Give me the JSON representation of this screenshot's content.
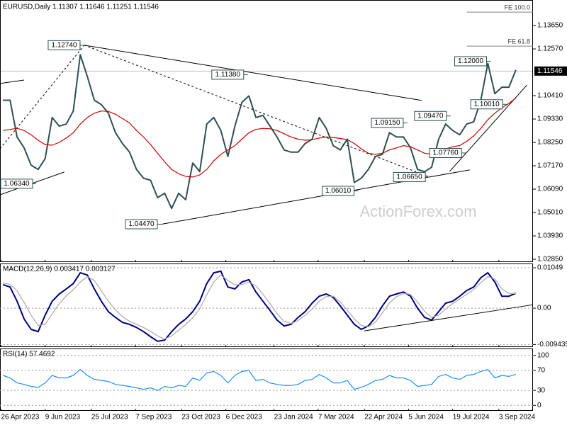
{
  "chart_data": {
    "type": "line",
    "title": "EURUSD,Daily 1.11307 1.11646 1.11251 1.11546",
    "watermark": "ActionForex.com",
    "x": [
      "2023-04-28",
      "2023-05-05",
      "2023-05-12",
      "2023-05-19",
      "2023-05-26",
      "2023-06-02",
      "2023-06-09",
      "2023-06-16",
      "2023-06-23",
      "2023-06-30",
      "2023-07-07",
      "2023-07-14",
      "2023-07-21",
      "2023-07-28",
      "2023-08-04",
      "2023-08-11",
      "2023-08-18",
      "2023-08-25",
      "2023-09-01",
      "2023-09-08",
      "2023-09-15",
      "2023-09-22",
      "2023-09-29",
      "2023-10-06",
      "2023-10-13",
      "2023-10-20",
      "2023-10-27",
      "2023-11-03",
      "2023-11-10",
      "2023-11-17",
      "2023-11-24",
      "2023-12-01",
      "2023-12-08",
      "2023-12-15",
      "2023-12-22",
      "2023-12-29",
      "2024-01-05",
      "2024-01-12",
      "2024-01-19",
      "2024-01-26",
      "2024-02-02",
      "2024-02-09",
      "2024-02-16",
      "2024-02-23",
      "2024-03-01",
      "2024-03-08",
      "2024-03-15",
      "2024-03-22",
      "2024-03-29",
      "2024-04-05",
      "2024-04-12",
      "2024-04-19",
      "2024-04-26",
      "2024-05-03",
      "2024-05-10",
      "2024-05-17",
      "2024-05-24",
      "2024-05-31",
      "2024-06-07",
      "2024-06-14",
      "2024-06-21",
      "2024-06-28",
      "2024-07-05",
      "2024-07-12",
      "2024-07-19",
      "2024-07-26",
      "2024-08-02",
      "2024-08-09",
      "2024-08-16",
      "2024-08-23",
      "2024-08-30",
      "2024-09-06",
      "2024-09-13",
      "2024-09-20"
    ],
    "xlim": [
      "2023-04-25",
      "2024-10-07"
    ],
    "xticks": [
      {
        "value": "2023-04-26",
        "label": "26 Apr 2023"
      },
      {
        "value": "2023-06-09",
        "label": "9 Jun 2023"
      },
      {
        "value": "2023-07-25",
        "label": "25 Jul 2023"
      },
      {
        "value": "2023-09-07",
        "label": "7 Sep 2023"
      },
      {
        "value": "2023-10-23",
        "label": "23 Oct 2023"
      },
      {
        "value": "2023-12-06",
        "label": "6 Dec 2023"
      },
      {
        "value": "2024-01-23",
        "label": "23 Jan 2024"
      },
      {
        "value": "2024-03-07",
        "label": "7 Mar 2024"
      },
      {
        "value": "2024-04-22",
        "label": "22 Apr 2024"
      },
      {
        "value": "2024-06-05",
        "label": "5 Jun 2024"
      },
      {
        "value": "2024-07-19",
        "label": "19 Jul 2024"
      },
      {
        "value": "2024-09-03",
        "label": "3 Sep 2024"
      }
    ],
    "ylim": [
      1.0272,
      1.1483
    ],
    "yticks": [
      {
        "value": 1.1365,
        "label": "1.13650"
      },
      {
        "value": 1.1257,
        "label": "1.12570"
      },
      {
        "value": 1.1041,
        "label": "1.10410"
      },
      {
        "value": 1.0933,
        "label": "1.09330"
      },
      {
        "value": 1.0825,
        "label": "1.08250"
      },
      {
        "value": 1.0717,
        "label": "1.07170"
      },
      {
        "value": 1.0609,
        "label": "1.06090"
      },
      {
        "value": 1.0501,
        "label": "1.05010"
      },
      {
        "value": 1.0393,
        "label": "1.03930"
      },
      {
        "value": 1.0285,
        "label": "1.02850"
      }
    ],
    "current_price": 1.11546,
    "series": [
      {
        "color": "#2f4f4f",
        "values": [
          1.102,
          1.102,
          1.085,
          1.08,
          1.072,
          1.07,
          1.075,
          1.094,
          1.09,
          1.091,
          1.097,
          1.123,
          1.113,
          1.102,
          1.1,
          1.096,
          1.087,
          1.082,
          1.078,
          1.07,
          1.066,
          1.065,
          1.057,
          1.059,
          1.052,
          1.059,
          1.056,
          1.073,
          1.069,
          1.091,
          1.094,
          1.088,
          1.076,
          1.09,
          1.101,
          1.104,
          1.094,
          1.095,
          1.09,
          1.085,
          1.079,
          1.078,
          1.078,
          1.082,
          1.084,
          1.094,
          1.089,
          1.081,
          1.079,
          1.084,
          1.064,
          1.066,
          1.07,
          1.076,
          1.077,
          1.087,
          1.085,
          1.085,
          1.08,
          1.07,
          1.069,
          1.071,
          1.084,
          1.091,
          1.088,
          1.086,
          1.091,
          1.092,
          1.102,
          1.119,
          1.105,
          1.108,
          1.108,
          1.116
        ]
      },
      {
        "color": "#cc0000",
        "values": [
          1.088,
          1.0885,
          1.089,
          1.088,
          1.086,
          1.0835,
          1.0815,
          1.0812,
          1.0825,
          1.0845,
          1.087,
          1.091,
          1.094,
          1.096,
          1.097,
          1.0968,
          1.0955,
          1.0935,
          1.0915,
          1.088,
          1.085,
          1.0815,
          1.0775,
          1.0735,
          1.07,
          1.068,
          1.0668,
          1.0665,
          1.0675,
          1.07,
          1.074,
          1.077,
          1.079,
          1.081,
          1.084,
          1.087,
          1.0885,
          1.089,
          1.0888,
          1.088,
          1.0865,
          1.085,
          1.084,
          1.0835,
          1.0838,
          1.0845,
          1.085,
          1.0848,
          1.0843,
          1.0838,
          1.082,
          1.0795,
          1.0775,
          1.077,
          1.0775,
          1.079,
          1.08,
          1.081,
          1.0805,
          1.079,
          1.0775,
          1.077,
          1.0778,
          1.0795,
          1.0805,
          1.081,
          1.083,
          1.0855,
          1.089,
          1.093,
          1.096,
          1.0985,
          1.1005,
          1.103
        ]
      }
    ],
    "annotations": [
      {
        "x": "2023-07-18",
        "value": 1.1274,
        "label": "1.12740"
      },
      {
        "x": "2023-05-31",
        "value": 1.0634,
        "label": "1.06340"
      },
      {
        "x": "2023-10-03",
        "value": 1.0447,
        "label": "1.04470"
      },
      {
        "x": "2023-12-28",
        "value": 1.1138,
        "label": "1.11380"
      },
      {
        "x": "2024-06-04",
        "value": 1.0915,
        "label": "1.09150"
      },
      {
        "x": "2024-04-16",
        "value": 1.0601,
        "label": "1.06010"
      },
      {
        "x": "2024-06-26",
        "value": 1.0665,
        "label": "1.06650"
      },
      {
        "x": "2024-07-17",
        "value": 1.0947,
        "label": "1.09470"
      },
      {
        "x": "2024-08-01",
        "value": 1.0776,
        "label": "1.07760"
      },
      {
        "x": "2024-08-26",
        "value": 1.12,
        "label": "1.12000"
      },
      {
        "x": "2024-09-11",
        "value": 1.1001,
        "label": "1.10010"
      }
    ],
    "levels": [
      {
        "from": "2024-08-02",
        "value": 1.1427,
        "label": "FE 100.0"
      },
      {
        "from": "2024-08-02",
        "value": 1.127,
        "label": "FE 61.8"
      }
    ],
    "trendlines": [
      {
        "x": [
          "2023-07-18",
          "2024-06-18"
        ],
        "values": [
          1.1274,
          1.1019
        ],
        "dashed": false
      },
      {
        "x": [
          "2023-10-03",
          "2024-08-05"
        ],
        "values": [
          1.0447,
          1.0698
        ],
        "dashed": false
      },
      {
        "x": [
          "2023-04-25",
          "2023-06-28"
        ],
        "values": [
          1.0583,
          1.0688
        ],
        "dashed": false
      },
      {
        "x": [
          "2023-04-25",
          "2023-05-19"
        ],
        "values": [
          1.1097,
          1.1113
        ],
        "dashed": false
      },
      {
        "x": [
          "2023-04-25",
          "2023-07-18"
        ],
        "values": [
          1.0796,
          1.1274
        ],
        "dashed": true
      },
      {
        "x": [
          "2023-07-18",
          "2024-06-26"
        ],
        "values": [
          1.1274,
          1.0665
        ],
        "dashed": true
      },
      {
        "x": [
          "2024-07-16",
          "2024-10-01"
        ],
        "values": [
          1.0691,
          1.109
        ],
        "dashed": false
      }
    ],
    "panels": [
      {
        "title": "MACD(12,26,9) 0.003417 0.003127",
        "ylim": [
          -0.0101,
          0.0116
        ],
        "yticks": [
          0.01049,
          {
            "value": 0,
            "label": "0.00"
          },
          -0.009435
        ],
        "series": [
          {
            "color": "#000080",
            "values": [
              0.0061,
              0.0055,
              0.0018,
              -0.0028,
              -0.0055,
              -0.0061,
              -0.0018,
              0.0018,
              0.0037,
              0.005,
              0.0064,
              0.0092,
              0.0086,
              0.005,
              0.0018,
              -0.0009,
              -0.0024,
              -0.0037,
              -0.0042,
              -0.005,
              -0.0061,
              -0.0074,
              -0.0086,
              -0.0083,
              -0.0061,
              -0.0042,
              -0.0028,
              -0.0009,
              0.0018,
              0.0064,
              0.0092,
              0.0096,
              0.0055,
              0.005,
              0.0068,
              0.0074,
              0.0042,
              0.0018,
              -0.0006,
              -0.0031,
              -0.0046,
              -0.0042,
              -0.0024,
              -0.0009,
              0.0013,
              0.0031,
              0.0037,
              0.0028,
              0.0006,
              -0.0018,
              -0.0042,
              -0.0055,
              -0.0046,
              -0.0024,
              0.0006,
              0.0031,
              0.0037,
              0.0042,
              0.0031,
              0.0,
              -0.0024,
              -0.0031,
              -0.0009,
              0.0013,
              0.0018,
              0.0031,
              0.0046,
              0.0055,
              0.0079,
              0.0092,
              0.0068,
              0.0031,
              0.0031,
              0.0039
            ]
          },
          {
            "color": "#a9a9a9",
            "values": [
              0.0065,
              0.0062,
              0.0045,
              0.0015,
              -0.0018,
              -0.0045,
              -0.0042,
              -0.0015,
              0.0012,
              0.0032,
              0.0048,
              0.0068,
              0.0082,
              0.0072,
              0.0045,
              0.0018,
              -0.0004,
              -0.0022,
              -0.0034,
              -0.0042,
              -0.005,
              -0.006,
              -0.0072,
              -0.008,
              -0.0072,
              -0.0057,
              -0.0042,
              -0.0025,
              -0.0002,
              0.0035,
              0.0068,
              0.0086,
              0.0072,
              0.006,
              0.0062,
              0.0068,
              0.0058,
              0.0036,
              0.0012,
              -0.0014,
              -0.0034,
              -0.004,
              -0.0032,
              -0.0018,
              -0.0002,
              0.0018,
              0.003,
              0.0031,
              0.0016,
              -0.0005,
              -0.0028,
              -0.0045,
              -0.0048,
              -0.0036,
              -0.0012,
              0.0014,
              0.003,
              0.0038,
              0.0036,
              0.0016,
              -0.0008,
              -0.0024,
              -0.0018,
              -0.0002,
              0.0012,
              0.0024,
              0.0036,
              0.0048,
              0.0066,
              0.0082,
              0.0076,
              0.005,
              0.0038,
              0.0038
            ]
          }
        ],
        "trendlines": [
          {
            "x": [
              "2024-04-22",
              "2024-10-07"
            ],
            "values": [
              -0.0059,
              0.0009
            ],
            "dashed": false
          }
        ]
      },
      {
        "title": "RSI(14) 57.4692",
        "ylim": [
          -11,
          114
        ],
        "yticks": [
          100,
          70,
          30,
          0
        ],
        "series": [
          {
            "color": "#1e90ff",
            "values": [
              60,
              55,
              45,
              42,
              38,
              36,
              45,
              60,
              55,
              55,
              60,
              72,
              60,
              52,
              50,
              48,
              42,
              40,
              38,
              35,
              32,
              35,
              30,
              38,
              35,
              40,
              38,
              55,
              50,
              65,
              68,
              60,
              45,
              60,
              68,
              70,
              50,
              52,
              45,
              42,
              40,
              40,
              42,
              50,
              52,
              62,
              55,
              45,
              45,
              50,
              32,
              36,
              42,
              50,
              52,
              60,
              55,
              55,
              50,
              38,
              40,
              42,
              58,
              62,
              55,
              52,
              60,
              62,
              68,
              72,
              55,
              60,
              58,
              62
            ]
          }
        ]
      }
    ]
  }
}
